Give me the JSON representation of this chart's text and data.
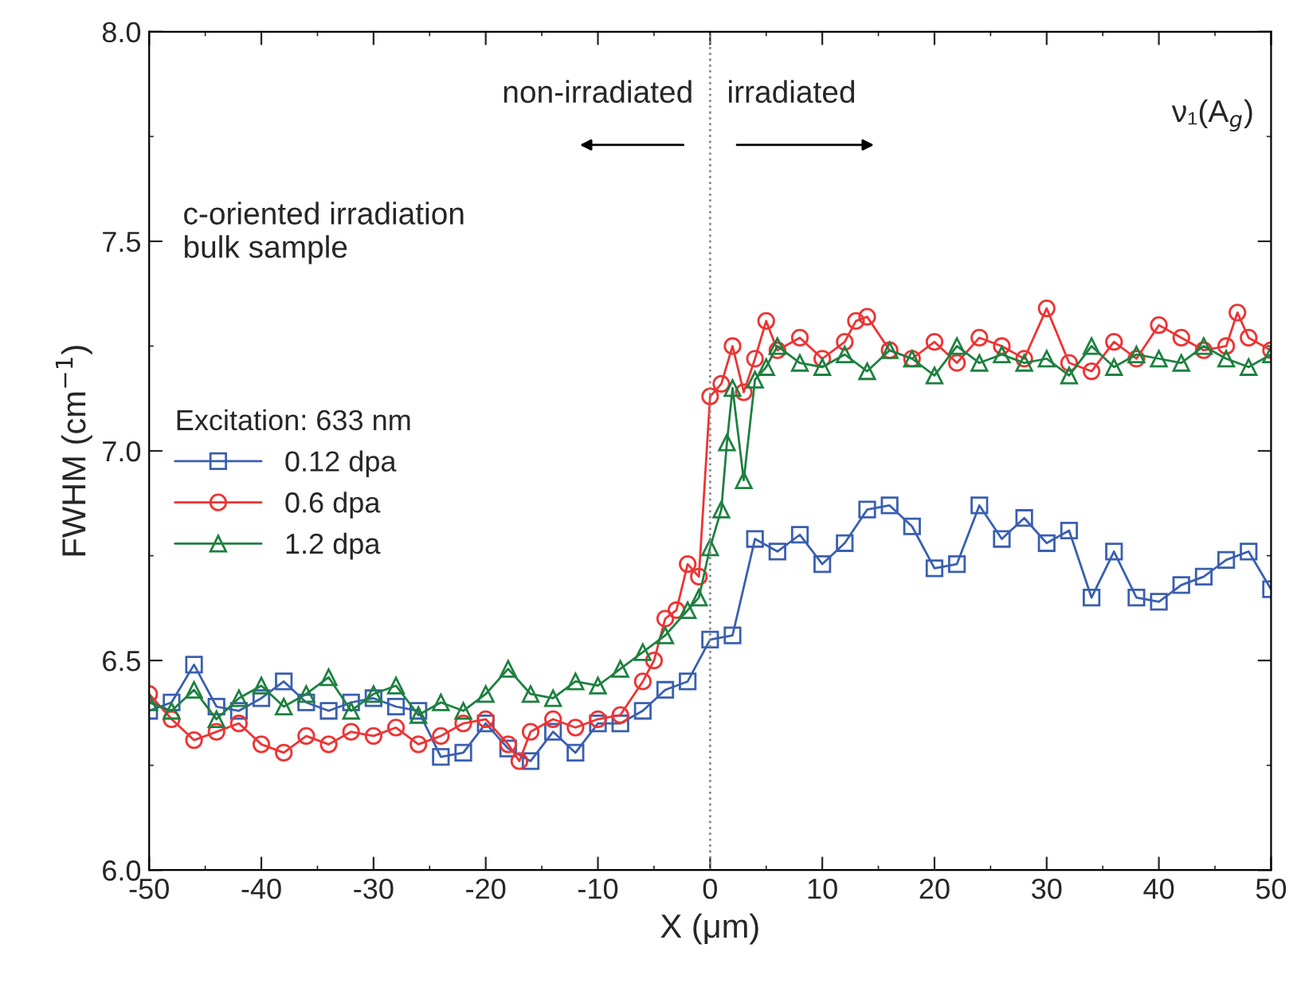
{
  "chart_data": {
    "type": "line",
    "xlabel": "X (μm)",
    "ylabel": "FWHM (cm$^{−1}$)",
    "legend_title": "Excitation: 633 nm",
    "xlim": [
      -50,
      50
    ],
    "xticks": [
      -50,
      -40,
      -30,
      -20,
      -10,
      0,
      10,
      20,
      30,
      40,
      50
    ],
    "ylim": [
      6.0,
      8.0
    ],
    "yticks": [
      {
        "value": 6.0,
        "label": "6.0"
      },
      {
        "value": 6.5,
        "label": "6.5"
      },
      {
        "value": 7.0,
        "label": "7.0"
      },
      {
        "value": 7.5,
        "label": "7.5"
      },
      {
        "value": 8.0,
        "label": "8.0"
      }
    ],
    "grid": false,
    "legend": "left",
    "annotations": [
      "non-irradiated",
      "irradiated",
      "ν₁(A$_{g}$)",
      "c-oriented irradiation\nbulk sample"
    ],
    "ref_lines": [
      {
        "axis": "x",
        "value": 0,
        "color": "#888888",
        "line_style": "dotted"
      }
    ],
    "series": [
      {
        "name": "0.12 dpa",
        "color": "#3a5fb0",
        "marker": "square",
        "x": [
          -50,
          -48,
          -46,
          -44,
          -42,
          -40,
          -38,
          -36,
          -34,
          -32,
          -30,
          -28,
          -26,
          -24,
          -22,
          -20,
          -18,
          -16,
          -14,
          -12,
          -10,
          -8,
          -6,
          -4,
          -2,
          0,
          2,
          4,
          6,
          8,
          10,
          12,
          14,
          16,
          18,
          20,
          22,
          24,
          26,
          28,
          30,
          32,
          34,
          36,
          38,
          40,
          42,
          44,
          46,
          48,
          50
        ],
        "values": [
          6.38,
          6.4,
          6.49,
          6.39,
          6.38,
          6.41,
          6.45,
          6.4,
          6.38,
          6.4,
          6.41,
          6.39,
          6.38,
          6.27,
          6.28,
          6.35,
          6.29,
          6.26,
          6.33,
          6.28,
          6.35,
          6.35,
          6.38,
          6.43,
          6.45,
          6.55,
          6.56,
          6.79,
          6.76,
          6.8,
          6.73,
          6.78,
          6.86,
          6.87,
          6.82,
          6.72,
          6.73,
          6.87,
          6.79,
          6.84,
          6.78,
          6.81,
          6.65,
          6.76,
          6.65,
          6.64,
          6.68,
          6.7,
          6.74,
          6.76,
          6.67
        ]
      },
      {
        "name": "0.6 dpa",
        "color": "#ee3333",
        "marker": "circle",
        "x": [
          -50,
          -48,
          -46,
          -44,
          -42,
          -40,
          -38,
          -36,
          -34,
          -32,
          -30,
          -28,
          -26,
          -24,
          -22,
          -20,
          -18,
          -17,
          -16,
          -14,
          -12,
          -10,
          -8,
          -6,
          -5,
          -4,
          -3,
          -2,
          -1,
          0,
          1,
          2,
          3,
          4,
          5,
          6,
          8,
          10,
          12,
          13,
          14,
          16,
          18,
          20,
          22,
          24,
          26,
          28,
          30,
          32,
          34,
          36,
          38,
          40,
          42,
          44,
          46,
          47,
          48,
          50
        ],
        "values": [
          6.42,
          6.36,
          6.31,
          6.33,
          6.35,
          6.3,
          6.28,
          6.32,
          6.3,
          6.33,
          6.32,
          6.34,
          6.3,
          6.32,
          6.35,
          6.36,
          6.3,
          6.26,
          6.33,
          6.36,
          6.34,
          6.36,
          6.37,
          6.45,
          6.5,
          6.6,
          6.62,
          6.73,
          6.7,
          7.13,
          7.16,
          7.25,
          7.14,
          7.22,
          7.31,
          7.24,
          7.27,
          7.22,
          7.26,
          7.31,
          7.32,
          7.24,
          7.22,
          7.26,
          7.21,
          7.27,
          7.25,
          7.22,
          7.34,
          7.21,
          7.19,
          7.26,
          7.22,
          7.3,
          7.27,
          7.24,
          7.25,
          7.33,
          7.27,
          7.24
        ]
      },
      {
        "name": "1.2 dpa",
        "color": "#1e8040",
        "marker": "triangle",
        "x": [
          -50,
          -48,
          -46,
          -44,
          -42,
          -40,
          -38,
          -36,
          -34,
          -32,
          -30,
          -28,
          -26,
          -24,
          -22,
          -20,
          -18,
          -16,
          -14,
          -12,
          -10,
          -8,
          -6,
          -4,
          -2,
          -1,
          0,
          1,
          1.5,
          2,
          3,
          4,
          5,
          6,
          8,
          10,
          12,
          14,
          16,
          18,
          20,
          22,
          24,
          26,
          28,
          30,
          32,
          34,
          36,
          38,
          40,
          42,
          44,
          46,
          48,
          50
        ],
        "values": [
          6.4,
          6.38,
          6.43,
          6.36,
          6.41,
          6.44,
          6.39,
          6.42,
          6.46,
          6.38,
          6.42,
          6.44,
          6.37,
          6.4,
          6.38,
          6.42,
          6.48,
          6.42,
          6.41,
          6.45,
          6.44,
          6.48,
          6.52,
          6.56,
          6.62,
          6.65,
          6.77,
          6.86,
          7.02,
          7.15,
          6.93,
          7.17,
          7.2,
          7.25,
          7.21,
          7.2,
          7.23,
          7.19,
          7.24,
          7.22,
          7.18,
          7.25,
          7.21,
          7.23,
          7.21,
          7.22,
          7.18,
          7.25,
          7.2,
          7.23,
          7.22,
          7.21,
          7.25,
          7.22,
          7.2,
          7.23
        ]
      }
    ]
  }
}
